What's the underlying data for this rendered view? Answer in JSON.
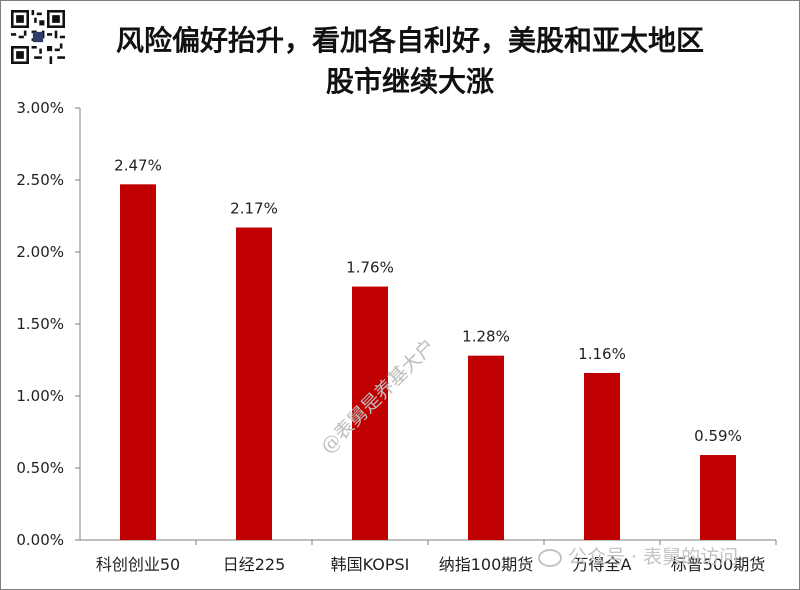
{
  "chart_data": {
    "type": "bar",
    "title_line1": "风险偏好抬升，看加各自利好，美股和亚太地区",
    "title_line2": "股市继续大涨",
    "categories": [
      "科创创业50",
      "日经225",
      "韩国KOPSI",
      "纳指100期货",
      "万得全A",
      "标普500期货"
    ],
    "values": [
      2.47,
      2.17,
      1.76,
      1.28,
      1.16,
      0.59
    ],
    "data_labels": [
      "2.47%",
      "2.17%",
      "1.76%",
      "1.28%",
      "1.16%",
      "0.59%"
    ],
    "ylim": [
      0,
      3.0
    ],
    "y_ticks": [
      0,
      0.5,
      1.0,
      1.5,
      2.0,
      2.5,
      3.0
    ],
    "y_tick_labels": [
      "0.00%",
      "0.50%",
      "1.00%",
      "1.50%",
      "2.00%",
      "2.50%",
      "3.00%"
    ],
    "bar_color": "#c00000",
    "grid": false,
    "legend": "none"
  },
  "watermarks": {
    "diagonal": "@表舅是养基大户",
    "footer_account": "公众号",
    "footer_name": "表舅的访问"
  }
}
